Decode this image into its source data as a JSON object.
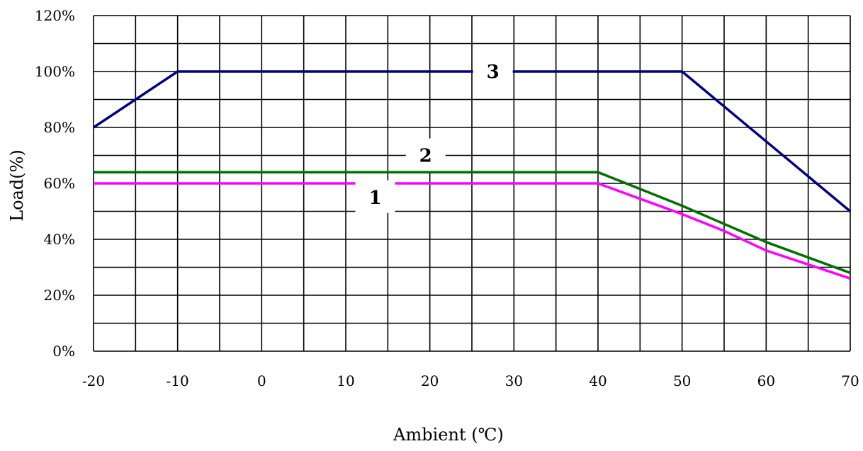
{
  "chart_data": {
    "type": "line",
    "title": "",
    "xlabel": "Ambient (℃)",
    "ylabel": "Load(%)",
    "xlim": [
      -20,
      70
    ],
    "ylim": [
      0,
      120
    ],
    "x_ticks": [
      "-20",
      "-10",
      "0",
      "10",
      "20",
      "30",
      "40",
      "50",
      "60",
      "70"
    ],
    "y_ticks": [
      "0%",
      "20%",
      "40%",
      "60%",
      "80%",
      "100%",
      "120%"
    ],
    "grid": true,
    "x_minor_step": 5,
    "y_minor_step": 10,
    "series": [
      {
        "label": "1",
        "color": "#ff00ff",
        "points": [
          [
            -20,
            60
          ],
          [
            40,
            60
          ],
          [
            50,
            49
          ],
          [
            55,
            43
          ],
          [
            60,
            36
          ],
          [
            65,
            31
          ],
          [
            70,
            26
          ]
        ],
        "label_at": [
          13.5,
          55
        ]
      },
      {
        "label": "2",
        "color": "#007000",
        "points": [
          [
            -20,
            64
          ],
          [
            40,
            64
          ],
          [
            50,
            52
          ],
          [
            60,
            39
          ],
          [
            70,
            28
          ]
        ],
        "label_at": [
          19.5,
          70
        ]
      },
      {
        "label": "3",
        "color": "#000080",
        "points": [
          [
            -20,
            80
          ],
          [
            -10,
            100
          ],
          [
            50,
            100
          ],
          [
            70,
            50
          ]
        ],
        "label_at": [
          27.5,
          100
        ]
      }
    ]
  }
}
